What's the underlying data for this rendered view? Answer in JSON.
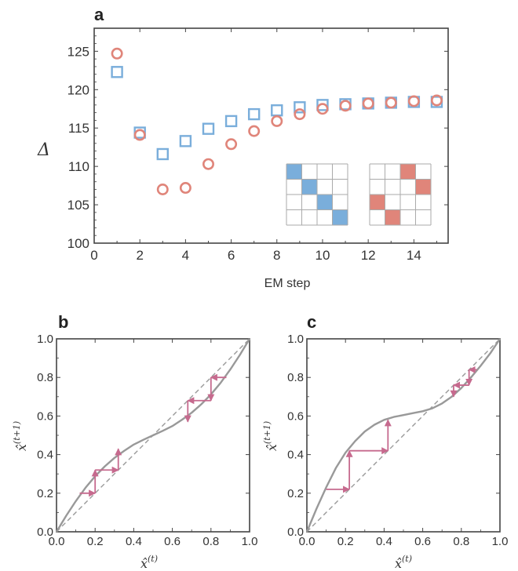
{
  "colors": {
    "blue": "#7aaedb",
    "red": "#e0857a",
    "curve": "#999999",
    "diag": "#999999",
    "arrow": "#c66a8e",
    "frame": "#444444"
  },
  "chart_data": [
    {
      "type": "scatter",
      "panel_label": "a",
      "xlabel": "EM step",
      "ylabel": "Δ",
      "xlim": [
        0,
        15.5
      ],
      "ylim": [
        100,
        128
      ],
      "xticks": [
        "0",
        "2",
        "4",
        "6",
        "8",
        "10",
        "12",
        "14"
      ],
      "yticks": [
        "100",
        "105",
        "110",
        "115",
        "120",
        "125"
      ],
      "series": [
        {
          "marker": "square",
          "color": "blue",
          "x": [
            1,
            2,
            3,
            4,
            5,
            6,
            7,
            8,
            9,
            10,
            11,
            12,
            13,
            14,
            15
          ],
          "y": [
            122.3,
            114.4,
            111.6,
            113.3,
            114.9,
            115.9,
            116.8,
            117.3,
            117.7,
            118.0,
            118.1,
            118.2,
            118.3,
            118.4,
            118.4
          ]
        },
        {
          "marker": "circle",
          "color": "red",
          "x": [
            1,
            2,
            3,
            4,
            5,
            6,
            7,
            8,
            9,
            10,
            11,
            12,
            13,
            14,
            15
          ],
          "y": [
            124.7,
            114.1,
            107.0,
            107.2,
            110.3,
            112.9,
            114.6,
            115.9,
            116.8,
            117.5,
            117.9,
            118.2,
            118.3,
            118.5,
            118.6
          ]
        }
      ],
      "insets": [
        {
          "color": "blue",
          "filled": [
            [
              0,
              0
            ],
            [
              1,
              1
            ],
            [
              2,
              2
            ],
            [
              3,
              3
            ]
          ]
        },
        {
          "color": "red",
          "filled": [
            [
              0,
              2
            ],
            [
              1,
              3
            ],
            [
              2,
              0
            ],
            [
              3,
              1
            ]
          ]
        }
      ]
    },
    {
      "type": "line",
      "panel_label": "b",
      "xlabel": "x̂",
      "xlabel_sup": "(t)",
      "ylabel": "x̂",
      "ylabel_sup": "(t+1)",
      "xlim": [
        0,
        1
      ],
      "ylim": [
        0,
        1
      ],
      "ticks": [
        "0.0",
        "0.2",
        "0.4",
        "0.6",
        "0.8",
        "1.0"
      ],
      "curve": {
        "x": [
          0,
          0.05,
          0.1,
          0.15,
          0.2,
          0.25,
          0.3,
          0.35,
          0.4,
          0.45,
          0.5,
          0.55,
          0.6,
          0.65,
          0.7,
          0.75,
          0.8,
          0.85,
          0.9,
          0.95,
          1
        ],
        "y": [
          0,
          0.083,
          0.159,
          0.228,
          0.288,
          0.339,
          0.383,
          0.419,
          0.452,
          0.477,
          0.5,
          0.523,
          0.548,
          0.581,
          0.617,
          0.661,
          0.712,
          0.772,
          0.841,
          0.917,
          1
        ]
      },
      "cobwebs": [
        {
          "x": [
            0.12,
            0.2,
            0.2,
            0.32,
            0.32
          ],
          "y": [
            0.2,
            0.2,
            0.32,
            0.32,
            0.43
          ]
        },
        {
          "x": [
            0.88,
            0.8,
            0.8,
            0.68,
            0.68
          ],
          "y": [
            0.8,
            0.8,
            0.68,
            0.68,
            0.57
          ]
        }
      ]
    },
    {
      "type": "line",
      "panel_label": "c",
      "xlabel": "x̂",
      "xlabel_sup": "(t)",
      "ylabel": "x̂",
      "ylabel_sup": "(t+1)",
      "xlim": [
        0,
        1
      ],
      "ylim": [
        0,
        1
      ],
      "ticks": [
        "0.0",
        "0.2",
        "0.4",
        "0.6",
        "0.8",
        "1.0"
      ],
      "curve": {
        "x": [
          0,
          0.05,
          0.1,
          0.15,
          0.2,
          0.25,
          0.3,
          0.35,
          0.4,
          0.45,
          0.5,
          0.55,
          0.6,
          0.65,
          0.7,
          0.75,
          0.8,
          0.85,
          0.9,
          0.95,
          1
        ],
        "y": [
          0,
          0.12,
          0.23,
          0.33,
          0.41,
          0.47,
          0.52,
          0.555,
          0.58,
          0.595,
          0.605,
          0.615,
          0.625,
          0.64,
          0.665,
          0.7,
          0.745,
          0.8,
          0.86,
          0.925,
          1
        ]
      },
      "cobwebs": [
        {
          "x": [
            0.1,
            0.22,
            0.22,
            0.42,
            0.42
          ],
          "y": [
            0.22,
            0.22,
            0.42,
            0.42,
            0.58
          ]
        },
        {
          "x": [
            0.88,
            0.84,
            0.84,
            0.76,
            0.76
          ],
          "y": [
            0.84,
            0.84,
            0.76,
            0.76,
            0.7
          ]
        }
      ]
    }
  ]
}
